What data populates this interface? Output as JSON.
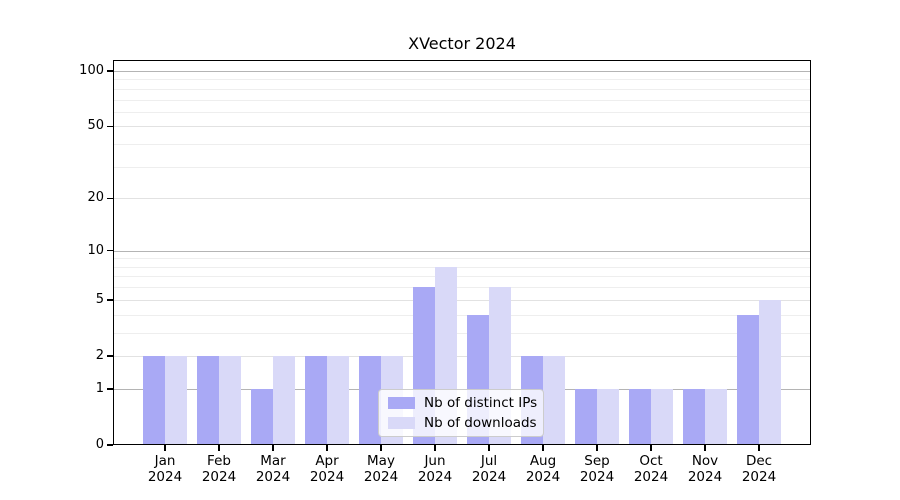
{
  "title": "XVector 2024",
  "chart_data": {
    "type": "bar",
    "title": "XVector 2024",
    "categories": [
      "Jan 2024",
      "Feb 2024",
      "Mar 2024",
      "Apr 2024",
      "May 2024",
      "Jun 2024",
      "Jul 2024",
      "Aug 2024",
      "Sep 2024",
      "Oct 2024",
      "Nov 2024",
      "Dec 2024"
    ],
    "month_labels": [
      "Jan",
      "Feb",
      "Mar",
      "Apr",
      "May",
      "Jun",
      "Jul",
      "Aug",
      "Sep",
      "Oct",
      "Nov",
      "Dec"
    ],
    "year_label": "2024",
    "series": [
      {
        "name": "Nb of distinct IPs",
        "color": "#a9a9f5",
        "values": [
          2,
          2,
          1,
          2,
          2,
          6,
          4,
          2,
          1,
          1,
          1,
          4
        ]
      },
      {
        "name": "Nb of downloads",
        "color": "#d9d9f8",
        "values": [
          2,
          2,
          2,
          2,
          2,
          8,
          6,
          2,
          1,
          1,
          1,
          5
        ]
      }
    ],
    "xlabel": "",
    "ylabel": "",
    "yscale": "log1p",
    "ylim": [
      0,
      115
    ],
    "ytick_labels": [
      100,
      50,
      20,
      10,
      5,
      2,
      1,
      0
    ],
    "gridlines_labeled": [
      1,
      2,
      5,
      10,
      20,
      50,
      100
    ],
    "gridlines_minor": [
      3,
      4,
      6,
      7,
      8,
      9,
      30,
      40,
      60,
      70,
      80,
      90
    ],
    "grid": "on",
    "legend_position": "lower center",
    "colors": {
      "bar_distinct_ips": "#a9a9f5",
      "bar_downloads": "#d9d9f8",
      "grid_power_of_ten": "#b4b4b4",
      "grid_labeled": "#e2e2e2",
      "grid_minor": "#eeeeee",
      "axis": "#000000",
      "legend_border": "#cccccc"
    }
  }
}
